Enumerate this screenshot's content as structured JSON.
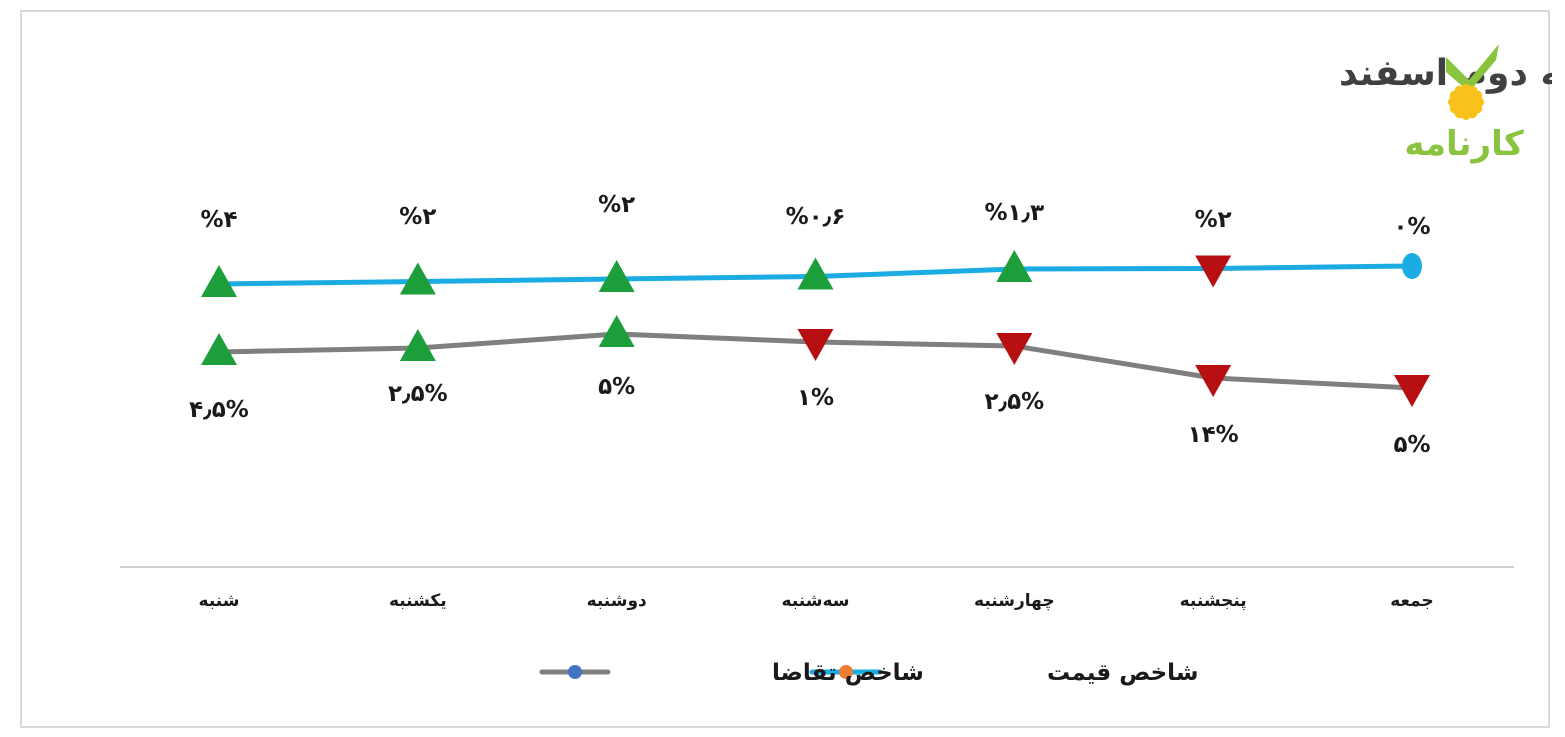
{
  "logo": {
    "text": "کارنامه",
    "leaf_color": "#8ac43f",
    "sun_color": "#f9c21a"
  },
  "colors": {
    "price": "#1aace3",
    "demand": "#7f7f7f",
    "up": "#1c9e3a",
    "down": "#b81012",
    "axis": "#d0d0d0"
  },
  "chart_data": {
    "type": "line",
    "title": "شاخص قیمت خودرو و شاخص تقاضای بازار در هفته دوم اسفند",
    "categories": [
      "شنبه",
      "یکشنبه",
      "دوشنبه",
      "سه‌شنبه",
      "چهارشنبه",
      "پنجشنبه",
      "جمعه"
    ],
    "series": [
      {
        "name": "شاخص قیمت",
        "values": [
          4,
          2,
          2,
          0.6,
          1.3,
          2,
          0
        ],
        "labels": [
          "%۴",
          "%۲",
          "%۲",
          "%۰٫۶",
          "%۱٫۳",
          "%۲",
          "۰%"
        ],
        "direction": [
          "up",
          "up",
          "up",
          "up",
          "up",
          "down",
          "flat"
        ]
      },
      {
        "name": "شاخص تقاضا",
        "values": [
          4.5,
          2.5,
          5,
          1,
          2.5,
          14,
          5
        ],
        "labels": [
          "۴٫۵%",
          "۲٫۵%",
          "۵%",
          "۱%",
          "۲٫۵%",
          "۱۴%",
          "۵%"
        ],
        "direction": [
          "up",
          "up",
          "up",
          "down",
          "down",
          "down",
          "down"
        ]
      }
    ],
    "legend": [
      {
        "name": "شاخص قیمت",
        "line_color": "#1aace3",
        "marker_color": "#ed7d31"
      },
      {
        "name": "شاخص تقاضا",
        "line_color": "#7f7f7f",
        "marker_color": "#4472c4"
      }
    ],
    "xlabel": "",
    "ylabel": "",
    "grid": false,
    "legend_position": "bottom"
  }
}
